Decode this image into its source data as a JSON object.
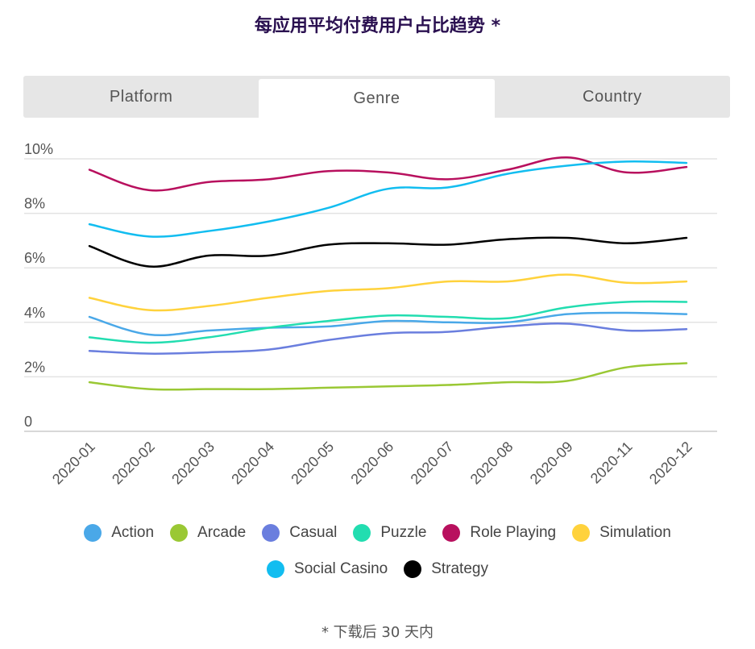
{
  "title": "每应用平均付费用户占比趋势 *",
  "tabs": [
    {
      "label": "Platform",
      "active": false
    },
    {
      "label": "Genre",
      "active": true
    },
    {
      "label": "Country",
      "active": false
    }
  ],
  "footnote": "* 下载后 30 天内",
  "chart_data": {
    "type": "line",
    "categories": [
      "2020-01",
      "2020-02",
      "2020-03",
      "2020-04",
      "2020-05",
      "2020-06",
      "2020-07",
      "2020-08",
      "2020-09",
      "2020-11",
      "2020-12"
    ],
    "ylim": [
      0,
      10
    ],
    "yticks": [
      0,
      2,
      4,
      6,
      8,
      10
    ],
    "ytick_labels": [
      "0",
      "2%",
      "4%",
      "6%",
      "8%",
      "10%"
    ],
    "grid": true,
    "legend_position": "bottom",
    "series": [
      {
        "name": "Action",
        "color": "#4aa8e8",
        "values": [
          4.2,
          3.55,
          3.7,
          3.8,
          3.85,
          4.05,
          4.0,
          4.0,
          4.3,
          4.35,
          4.3
        ]
      },
      {
        "name": "Arcade",
        "color": "#9ac834",
        "values": [
          1.8,
          1.55,
          1.55,
          1.55,
          1.6,
          1.65,
          1.7,
          1.8,
          1.85,
          2.35,
          2.5
        ]
      },
      {
        "name": "Casual",
        "color": "#6a7ede",
        "values": [
          2.95,
          2.85,
          2.9,
          3.0,
          3.35,
          3.6,
          3.65,
          3.85,
          3.95,
          3.7,
          3.75
        ]
      },
      {
        "name": "Puzzle",
        "color": "#22ddb0",
        "values": [
          3.45,
          3.25,
          3.45,
          3.8,
          4.05,
          4.25,
          4.2,
          4.15,
          4.55,
          4.75,
          4.75
        ]
      },
      {
        "name": "Role Playing",
        "color": "#b8105e",
        "values": [
          9.6,
          8.85,
          9.15,
          9.25,
          9.55,
          9.5,
          9.25,
          9.6,
          10.05,
          9.5,
          9.7
        ]
      },
      {
        "name": "Simulation",
        "color": "#ffd23c",
        "values": [
          4.9,
          4.45,
          4.6,
          4.9,
          5.15,
          5.25,
          5.5,
          5.5,
          5.75,
          5.45,
          5.5
        ]
      },
      {
        "name": "Social Casino",
        "color": "#12bdf0",
        "values": [
          7.6,
          7.15,
          7.35,
          7.7,
          8.2,
          8.9,
          8.95,
          9.45,
          9.75,
          9.9,
          9.85
        ]
      },
      {
        "name": "Strategy",
        "color": "#000000",
        "values": [
          6.8,
          6.05,
          6.45,
          6.45,
          6.85,
          6.9,
          6.85,
          7.05,
          7.1,
          6.9,
          7.1
        ]
      }
    ]
  }
}
